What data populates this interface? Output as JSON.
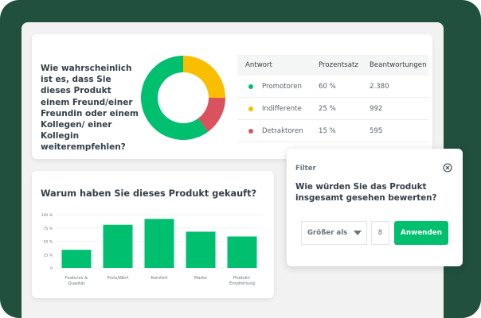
{
  "colors": {
    "background": "#21503f",
    "promoter": "#00bf6f",
    "passive": "#f9be00",
    "detractor": "#d9525e",
    "bar": "#00bf6f"
  },
  "nps_card": {
    "question": "Wie wahrscheinlich ist es, dass Sie dieses Produkt einem Freund/einer Freundin oder einem Kollegen/ einer Kollegin weiterempfehlen?",
    "table": {
      "headers": [
        "Antwort",
        "Prozentsatz",
        "Beantwortungen"
      ],
      "rows": [
        {
          "label": "Promotoren",
          "percent": "60 %",
          "count": "2.380",
          "color": "#00bf6f"
        },
        {
          "label": "Indifferente",
          "percent": "25 %",
          "count": "992",
          "color": "#f9be00"
        },
        {
          "label": "Detraktoren",
          "percent": "15 %",
          "count": "595",
          "color": "#d9525e"
        }
      ]
    }
  },
  "bars_card": {
    "title": "Warum haben Sie dieses Produkt gekauft?"
  },
  "filter_card": {
    "label": "Filter",
    "close_icon": "close-circle-icon",
    "question": "Wie würden Sie das Produkt insgesamt gesehen bewerten?",
    "operator": "Größer als",
    "value": "8",
    "apply_label": "Anwenden"
  },
  "chart_data": [
    {
      "type": "pie",
      "title": "Wie wahrscheinlich ist es, dass Sie dieses Produkt einem Freund/einer Freundin oder einem Kollegen/ einer Kollegin weiterempfehlen?",
      "categories": [
        "Promotoren",
        "Indifferente",
        "Detraktoren"
      ],
      "values": [
        60,
        25,
        15
      ],
      "counts": [
        2380,
        992,
        595
      ],
      "colors": [
        "#00bf6f",
        "#f9be00",
        "#d9525e"
      ],
      "donut": true
    },
    {
      "type": "bar",
      "title": "Warum haben Sie dieses Produkt gekauft?",
      "categories": [
        "Features & Qualität",
        "Preis/Wert",
        "Komfort",
        "Marke",
        "Produkt-Empfehlung"
      ],
      "category_lines": [
        [
          "Features &",
          "Qualität"
        ],
        [
          "Preis/Wert"
        ],
        [
          "Komfort"
        ],
        [
          "Marke"
        ],
        [
          "Produkt-",
          "Empfehlung"
        ]
      ],
      "values": [
        34,
        81,
        92,
        68,
        59
      ],
      "xlabel": "",
      "ylabel": "",
      "ylim": [
        0,
        100
      ],
      "yticks": [
        "0",
        "25 %",
        "50 %",
        "75 %",
        "100 %"
      ],
      "grid": true
    }
  ]
}
